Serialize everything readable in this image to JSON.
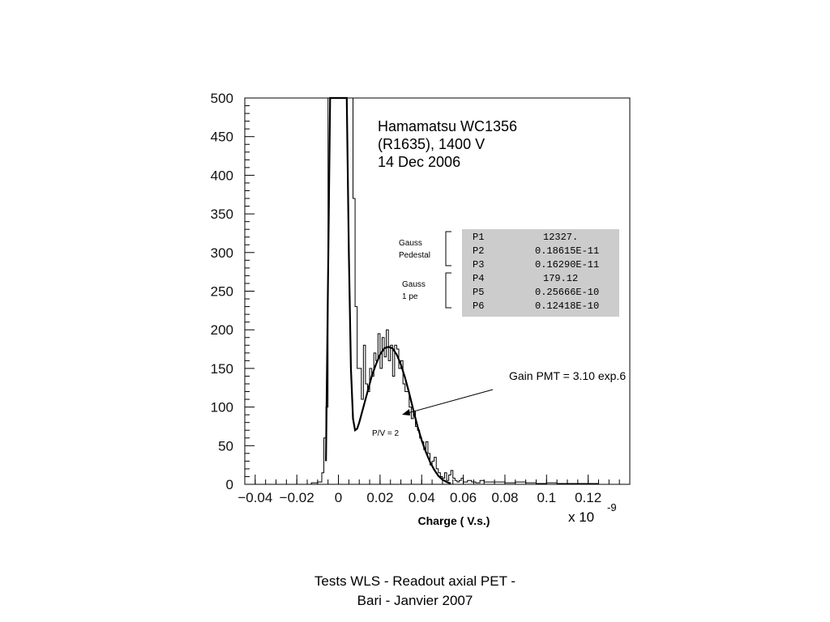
{
  "chart_data": {
    "type": "line",
    "title": "",
    "xlabel": "Charge ( V.s.)",
    "ylabel": "",
    "x_multiplier": "x 10",
    "x_multiplier_exp": "-9",
    "xlim": [
      -0.045,
      0.14
    ],
    "ylim": [
      0,
      500
    ],
    "xticks": [
      -0.04,
      -0.02,
      0,
      0.02,
      0.04,
      0.06,
      0.08,
      0.1,
      0.12
    ],
    "xtick_labels": [
      "−0.04",
      "−0.02",
      "0",
      "0.02",
      "0.04",
      "0.06",
      "0.08",
      "0.1",
      "0.12"
    ],
    "yticks": [
      0,
      50,
      100,
      150,
      200,
      250,
      300,
      350,
      400,
      450,
      500
    ],
    "ytick_labels": [
      "0",
      "50",
      "100",
      "150",
      "200",
      "250",
      "300",
      "350",
      "400",
      "450",
      "500"
    ],
    "grid": false,
    "series": [
      {
        "style": "histogram",
        "x": [
          -0.013,
          -0.01,
          -0.008,
          -0.007,
          -0.006,
          -0.005,
          -0.004,
          -0.003,
          -0.002,
          -0.001,
          0.0,
          0.001,
          0.002,
          0.003,
          0.004,
          0.005,
          0.006,
          0.007,
          0.008,
          0.009,
          0.01,
          0.011,
          0.012,
          0.013,
          0.014,
          0.015,
          0.016,
          0.017,
          0.018,
          0.019,
          0.02,
          0.021,
          0.022,
          0.023,
          0.024,
          0.025,
          0.026,
          0.027,
          0.028,
          0.029,
          0.03,
          0.031,
          0.032,
          0.033,
          0.034,
          0.035,
          0.036,
          0.037,
          0.038,
          0.039,
          0.04,
          0.041,
          0.042,
          0.043,
          0.044,
          0.045,
          0.046,
          0.047,
          0.048,
          0.049,
          0.05,
          0.051,
          0.052,
          0.053,
          0.054,
          0.055,
          0.056,
          0.057,
          0.058,
          0.059,
          0.06,
          0.062,
          0.064,
          0.066,
          0.068,
          0.07,
          0.075,
          0.08,
          0.085,
          0.09,
          0.095,
          0.1,
          0.105,
          0.11,
          0.115,
          0.12,
          0.125,
          0.13
        ],
        "y": [
          2,
          3,
          15,
          60,
          100,
          500,
          500,
          500,
          500,
          500,
          500,
          500,
          500,
          500,
          500,
          500,
          500,
          370,
          230,
          150,
          150,
          110,
          180,
          130,
          120,
          150,
          140,
          170,
          160,
          195,
          150,
          190,
          165,
          200,
          160,
          180,
          140,
          180,
          175,
          150,
          160,
          130,
          120,
          120,
          100,
          85,
          95,
          75,
          70,
          60,
          55,
          45,
          55,
          40,
          25,
          30,
          35,
          20,
          15,
          10,
          8,
          15,
          5,
          12,
          18,
          8,
          5,
          3,
          5,
          8,
          3,
          5,
          3,
          2,
          5,
          3,
          3,
          2,
          3,
          2,
          1,
          2,
          1,
          1,
          1,
          1,
          0,
          0
        ]
      },
      {
        "style": "fit",
        "x": [
          -0.006,
          -0.004,
          -0.002,
          0.0,
          0.002,
          0.004,
          0.005,
          0.006,
          0.007,
          0.008,
          0.009,
          0.01,
          0.012,
          0.014,
          0.016,
          0.018,
          0.02,
          0.022,
          0.024,
          0.026,
          0.028,
          0.03,
          0.032,
          0.034,
          0.036,
          0.038,
          0.04,
          0.042,
          0.044,
          0.046,
          0.048,
          0.05,
          0.052,
          0.054
        ],
        "y": [
          30,
          500,
          500,
          500,
          500,
          500,
          300,
          150,
          85,
          70,
          72,
          80,
          100,
          120,
          140,
          155,
          168,
          176,
          178,
          176,
          168,
          155,
          138,
          118,
          96,
          75,
          57,
          42,
          29,
          19,
          11,
          6,
          3,
          1
        ]
      }
    ],
    "annotations": {
      "title_lines": [
        "Hamamatsu WC1356",
        "(R1635), 1400 V",
        "14 Dec 2006"
      ],
      "group_pedestal": [
        "Gauss",
        "Pedestal"
      ],
      "group_1pe": [
        "Gauss",
        "1 pe"
      ],
      "params": [
        {
          "name": "P1",
          "value": "12327."
        },
        {
          "name": "P2",
          "value": "0.18615E-11"
        },
        {
          "name": "P3",
          "value": "0.16290E-11"
        },
        {
          "name": "P4",
          "value": "179.12"
        },
        {
          "name": "P5",
          "value": "0.25666E-10"
        },
        {
          "name": "P6",
          "value": "0.12418E-10"
        }
      ],
      "gain": "Gain PMT = 3.10 exp.6",
      "pv": "P/V = 2"
    },
    "colors": {
      "param_box": "#cccccc",
      "axis": "#000000"
    }
  },
  "footer": {
    "line1": "Tests WLS - Readout axial PET -",
    "line2": "Bari - Janvier 2007"
  }
}
